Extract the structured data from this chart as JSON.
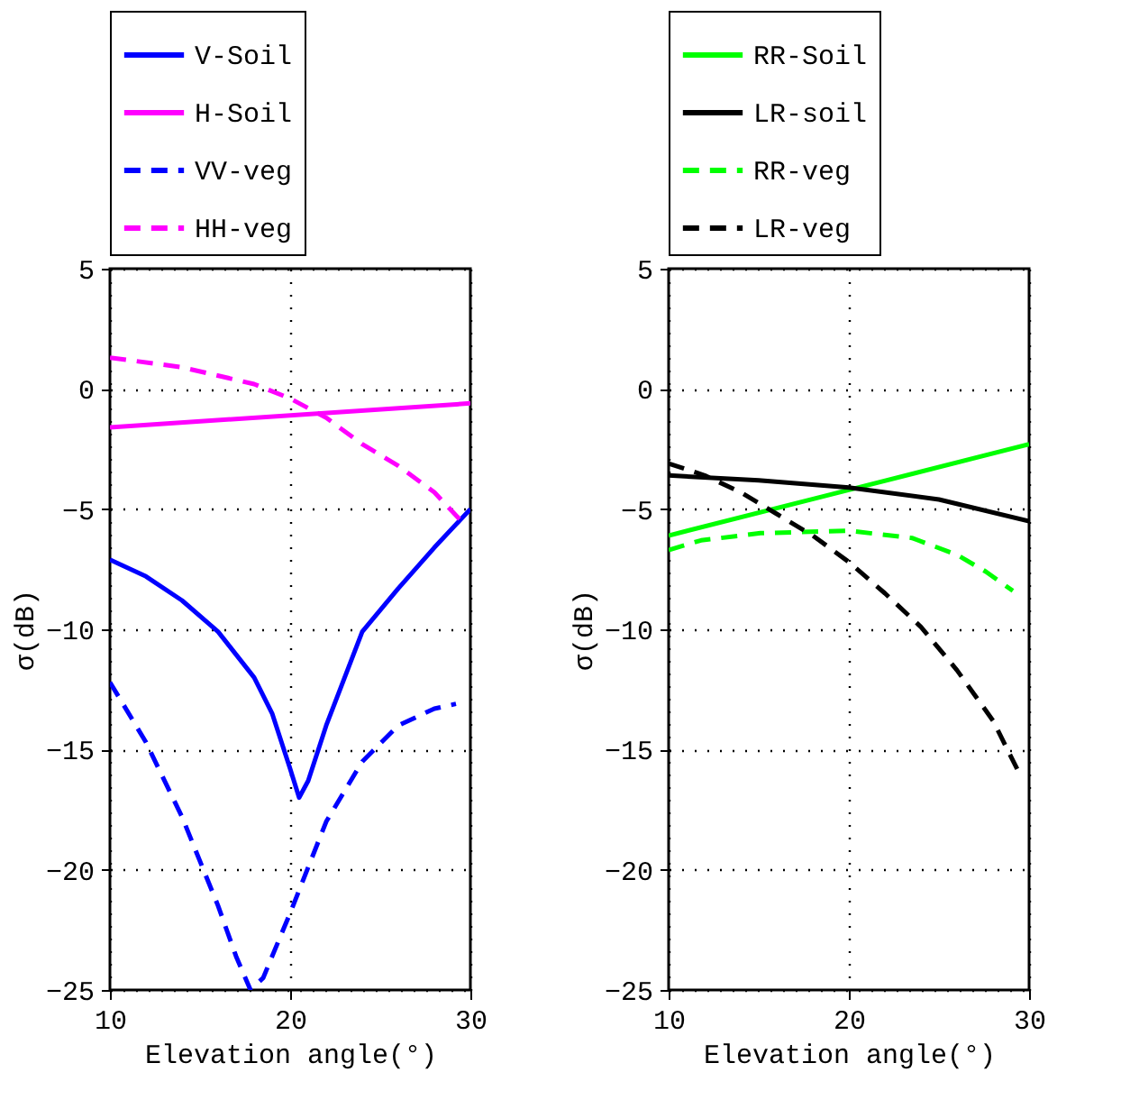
{
  "chart_data": [
    {
      "type": "line",
      "xlabel": "Elevation angle(°)",
      "ylabel": "σ(dB)",
      "xlim": [
        10,
        30
      ],
      "xticks": [
        10,
        20,
        30
      ],
      "ylim": [
        -25,
        5
      ],
      "yticks": [
        -25,
        -20,
        -15,
        -10,
        -5,
        0,
        5
      ],
      "grid": true,
      "legend": "top",
      "series": [
        {
          "name": "V-Soil",
          "color": "#0000ff",
          "line_style": "solid",
          "x": [
            10,
            12,
            14,
            16,
            18,
            19,
            20,
            20.5,
            21,
            22,
            24,
            26,
            28,
            30
          ],
          "values": [
            -7.1,
            -7.8,
            -8.8,
            -10.1,
            -12.0,
            -13.5,
            -15.8,
            -17,
            -16.3,
            -14,
            -10.1,
            -8.3,
            -6.6,
            -5
          ]
        },
        {
          "name": "H-Soil",
          "color": "#ff00ff",
          "line_style": "solid",
          "x": [
            10,
            30
          ],
          "values": [
            -1.6,
            -0.6
          ]
        },
        {
          "name": "VV-veg",
          "color": "#0000ff",
          "line_style": "dashed",
          "x": [
            10,
            12,
            14,
            16,
            17,
            17.8,
            18.5,
            20,
            22,
            24,
            26,
            28,
            29.2
          ],
          "values": [
            -12.2,
            -14.7,
            -17.8,
            -21.5,
            -23.6,
            -25,
            -24.5,
            -21.8,
            -18,
            -15.5,
            -14,
            -13.3,
            -13.1
          ]
        },
        {
          "name": "HH-veg",
          "color": "#ff00ff",
          "line_style": "dashed",
          "x": [
            10,
            14,
            18,
            20,
            22,
            24,
            26,
            28,
            29.5
          ],
          "values": [
            1.3,
            0.9,
            0.2,
            -0.4,
            -1.2,
            -2.3,
            -3.2,
            -4.3,
            -5.5
          ]
        }
      ]
    },
    {
      "type": "line",
      "xlabel": "Elevation angle(°)",
      "ylabel": "σ(dB)",
      "xlim": [
        10,
        30
      ],
      "xticks": [
        10,
        20,
        30
      ],
      "ylim": [
        -25,
        5
      ],
      "yticks": [
        -25,
        -20,
        -15,
        -10,
        -5,
        0,
        5
      ],
      "grid": true,
      "legend": "top",
      "series": [
        {
          "name": "RR-Soil",
          "color": "#00ff00",
          "line_style": "solid",
          "x": [
            10,
            20,
            30
          ],
          "values": [
            -6.1,
            -4.2,
            -2.3
          ]
        },
        {
          "name": "LR-soil",
          "color": "#000000",
          "line_style": "solid",
          "x": [
            10,
            15,
            20,
            25,
            30
          ],
          "values": [
            -3.6,
            -3.8,
            -4.1,
            -4.6,
            -5.5
          ]
        },
        {
          "name": "RR-veg",
          "color": "#00ff00",
          "line_style": "dashed",
          "x": [
            10,
            11.8,
            15.1,
            20,
            23.5,
            26,
            27.6,
            29.1
          ],
          "values": [
            -6.7,
            -6.3,
            -6.0,
            -5.9,
            -6.2,
            -6.9,
            -7.6,
            -8.4
          ]
        },
        {
          "name": "LR-veg",
          "color": "#000000",
          "line_style": "dashed",
          "x": [
            10,
            12,
            14,
            16,
            18,
            20,
            22,
            24,
            26,
            28,
            29.4
          ],
          "values": [
            -3.1,
            -3.6,
            -4.3,
            -5.2,
            -6.1,
            -7.2,
            -8.5,
            -9.9,
            -11.7,
            -13.8,
            -15.9
          ]
        }
      ]
    }
  ]
}
